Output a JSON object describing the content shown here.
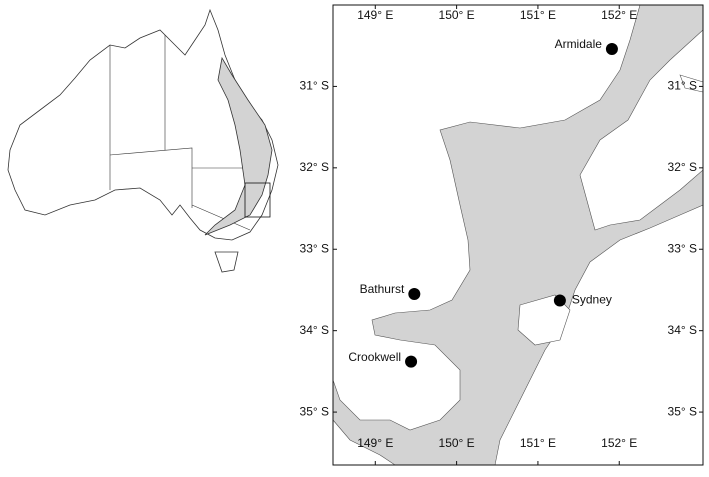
{
  "map": {
    "xlim": [
      148.48,
      153.03
    ],
    "ylim": [
      -35.65,
      -30.0
    ],
    "xticks": [
      {
        "value": 149,
        "label": "149° E"
      },
      {
        "value": 150,
        "label": "150° E"
      },
      {
        "value": 151,
        "label": "151° E"
      },
      {
        "value": 152,
        "label": "152° E"
      }
    ],
    "yticks": [
      {
        "value": -31,
        "label": "31° S"
      },
      {
        "value": -32,
        "label": "32° S"
      },
      {
        "value": -33,
        "label": "33° S"
      },
      {
        "value": -34,
        "label": "34° S"
      },
      {
        "value": -35,
        "label": "35° S"
      }
    ],
    "cities": [
      {
        "name": "Armidale",
        "lon": 151.91,
        "lat": -30.54
      },
      {
        "name": "Bathurst",
        "lon": 149.48,
        "lat": -33.55
      },
      {
        "name": "Sydney",
        "lon": 151.27,
        "lat": -33.63
      },
      {
        "name": "Crookwell",
        "lon": 149.44,
        "lat": -34.38
      }
    ]
  }
}
